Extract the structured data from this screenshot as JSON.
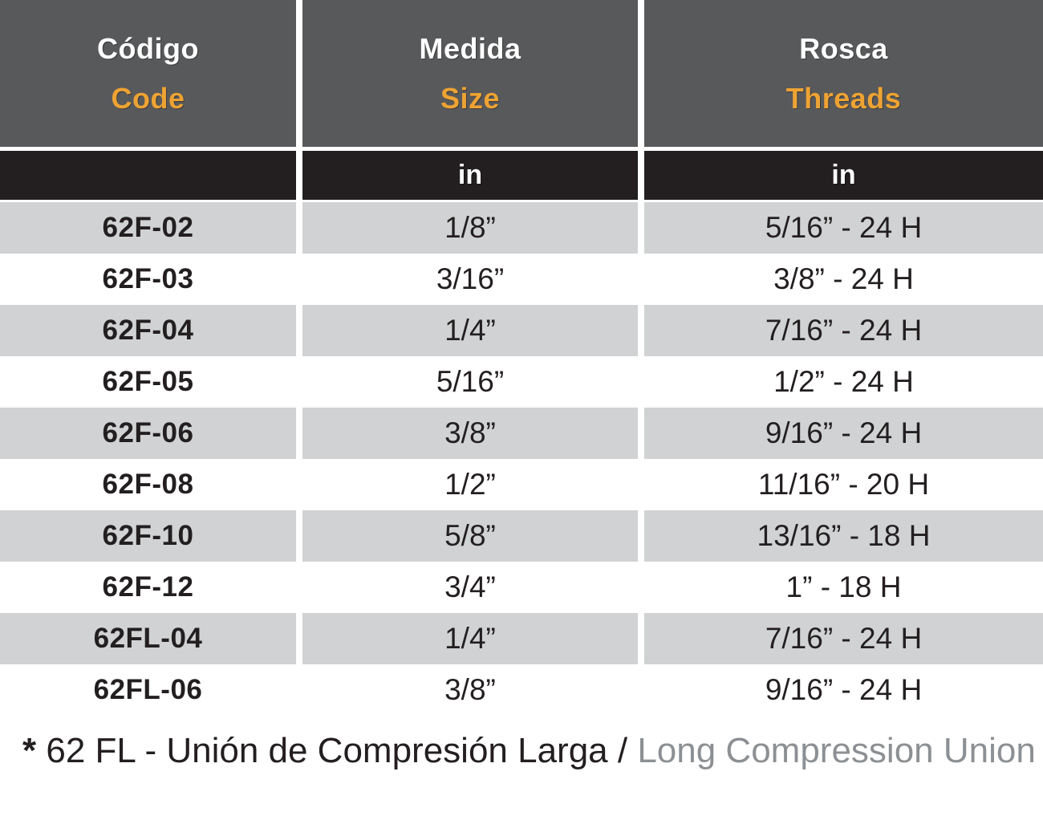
{
  "table": {
    "columns": [
      {
        "title_es": "Código",
        "title_en": "Code",
        "unit": ""
      },
      {
        "title_es": "Medida",
        "title_en": "Size",
        "unit": "in"
      },
      {
        "title_es": "Rosca",
        "title_en": "Threads",
        "unit": "in"
      }
    ],
    "rows": [
      {
        "code": "62F-02",
        "size": "1/8”",
        "threads": "5/16” - 24 H"
      },
      {
        "code": "62F-03",
        "size": "3/16”",
        "threads": "3/8” - 24 H"
      },
      {
        "code": "62F-04",
        "size": "1/4”",
        "threads": "7/16” - 24 H"
      },
      {
        "code": "62F-05",
        "size": "5/16”",
        "threads": "1/2” - 24 H"
      },
      {
        "code": "62F-06",
        "size": "3/8”",
        "threads": "9/16” - 24 H"
      },
      {
        "code": "62F-08",
        "size": "1/2”",
        "threads": "11/16” - 20 H"
      },
      {
        "code": "62F-10",
        "size": "5/8”",
        "threads": "13/16” - 18 H"
      },
      {
        "code": "62F-12",
        "size": "3/4”",
        "threads": "1” - 18 H"
      },
      {
        "code": "62FL-04",
        "size": "1/4”",
        "threads": "7/16” - 24 H"
      },
      {
        "code": "62FL-06",
        "size": "3/8”",
        "threads": "9/16” - 24 H"
      }
    ]
  },
  "footnote": {
    "marker": "*",
    "text_black": " 62 FL - Unión de Compresión Larga / ",
    "text_gray": "Long Compression Union"
  },
  "colors": {
    "header_bg": "#58595B",
    "subheader_bg": "#231F20",
    "row_alt_bg": "#D0D2D3",
    "accent_orange": "#EDA333",
    "text_dark": "#231F20",
    "footnote_gray": "#8D9093"
  }
}
